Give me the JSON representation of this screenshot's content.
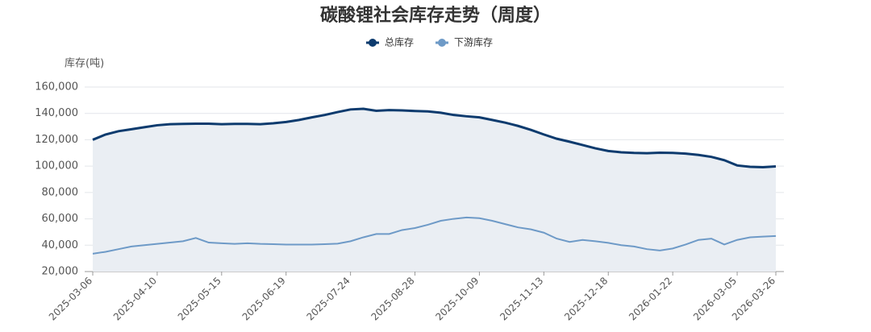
{
  "chart_data": {
    "type": "line",
    "title": "碳酸锂社会库存走势（周度）",
    "y_label": "库存(吨)",
    "categories": [
      "2025-03-06",
      null,
      null,
      null,
      null,
      "2025-04-10",
      null,
      null,
      null,
      null,
      "2025-05-15",
      null,
      null,
      null,
      null,
      "2025-06-19",
      null,
      null,
      null,
      null,
      "2025-07-24",
      null,
      null,
      null,
      null,
      "2025-08-28",
      null,
      null,
      null,
      null,
      "2025-10-09",
      null,
      null,
      null,
      null,
      "2025-11-13",
      null,
      null,
      null,
      null,
      "2025-12-18",
      null,
      null,
      null,
      null,
      "2026-01-22",
      null,
      null,
      null,
      null,
      "2026-03-05",
      null,
      null,
      "2026-03-26"
    ],
    "series": [
      {
        "name": "总库存",
        "color": "#0d3b6e",
        "area_color": "#eaeef3",
        "values": [
          120000,
          124000,
          126500,
          128000,
          129500,
          131000,
          131800,
          132000,
          132200,
          132200,
          131800,
          132000,
          132000,
          131800,
          132500,
          133500,
          135000,
          137000,
          138800,
          141000,
          143000,
          143500,
          142000,
          142500,
          142300,
          141800,
          141500,
          140500,
          138800,
          137800,
          137000,
          135000,
          133000,
          130500,
          127500,
          124000,
          120800,
          118500,
          116000,
          113500,
          111500,
          110500,
          110000,
          109800,
          110200,
          110000,
          109500,
          108500,
          107000,
          104500,
          100500,
          99500,
          99200,
          99800
        ]
      },
      {
        "name": "下游库存",
        "color": "#6e9ac7",
        "values": [
          33500,
          35000,
          37000,
          39000,
          40000,
          41000,
          42000,
          43000,
          45500,
          42000,
          41500,
          41000,
          41500,
          41000,
          40800,
          40500,
          40500,
          40500,
          40800,
          41200,
          43000,
          46000,
          48500,
          48500,
          51500,
          53000,
          55500,
          58500,
          60000,
          61000,
          60500,
          58500,
          56000,
          53500,
          52000,
          49500,
          45000,
          42500,
          44000,
          43000,
          41800,
          40000,
          39000,
          37000,
          36000,
          37500,
          40500,
          44000,
          45000,
          40500,
          44000,
          46000,
          46500,
          47000
        ]
      }
    ],
    "ylim": [
      20000,
      160000
    ],
    "yticks": [
      {
        "value": 20000,
        "label": "20,000"
      },
      {
        "value": 40000,
        "label": "40,000"
      },
      {
        "value": 60000,
        "label": "60,000"
      },
      {
        "value": 80000,
        "label": "80,000"
      },
      {
        "value": 100000,
        "label": "100,000"
      },
      {
        "value": 120000,
        "label": "120,000"
      },
      {
        "value": 140000,
        "label": "140,000"
      },
      {
        "value": 160000,
        "label": "160,000"
      }
    ],
    "grid": true,
    "legend": "top"
  }
}
